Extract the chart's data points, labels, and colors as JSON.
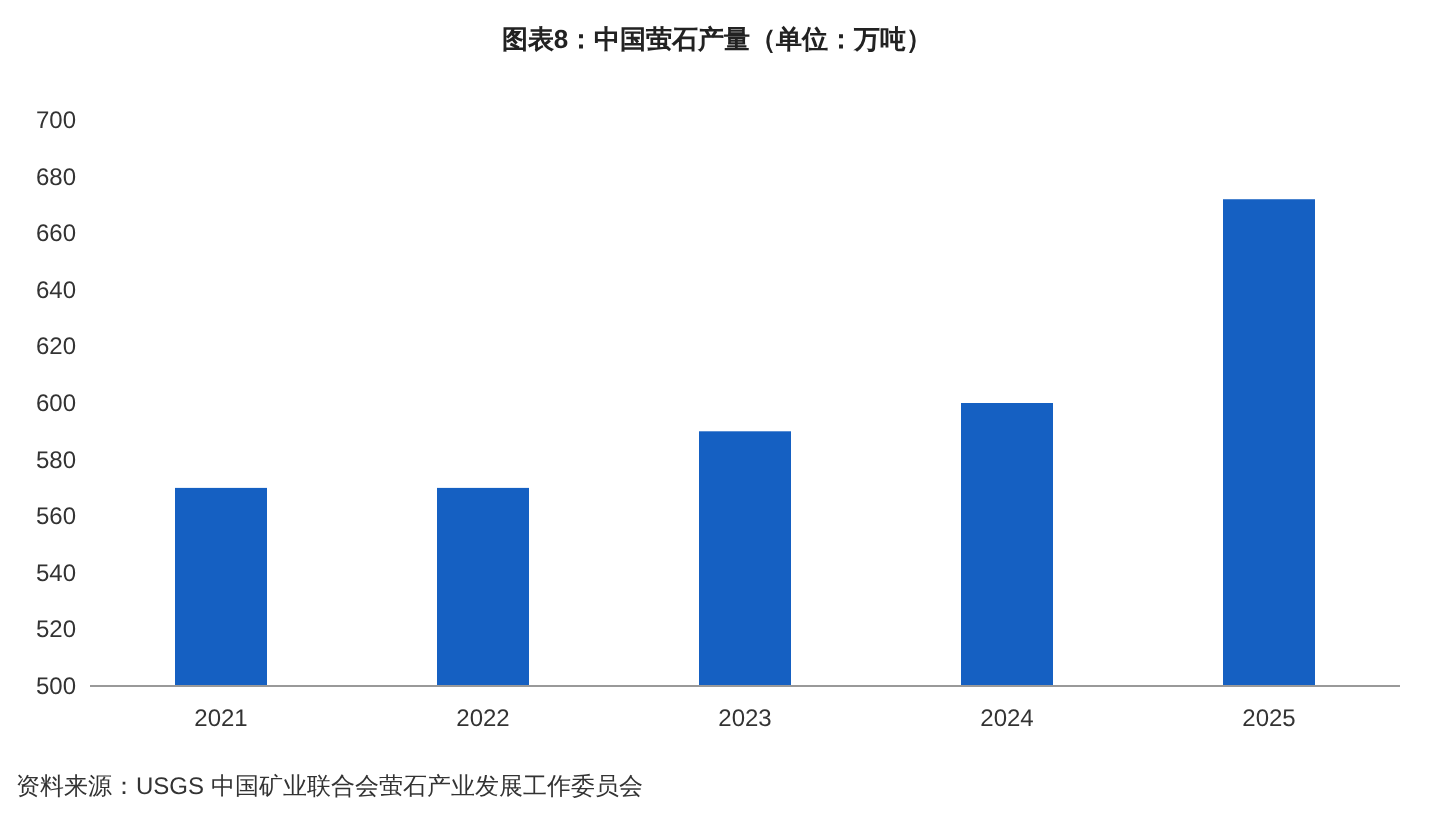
{
  "chart_data": {
    "type": "bar",
    "title": "图表8：中国萤石产量（单位：万吨）",
    "categories": [
      "2021",
      "2022",
      "2023",
      "2024",
      "2025"
    ],
    "values": [
      570,
      570,
      590,
      600,
      672
    ],
    "color": "#1560c2",
    "ylim": [
      500,
      700
    ],
    "yticks": [
      500,
      520,
      540,
      560,
      580,
      600,
      620,
      640,
      660,
      680,
      700
    ],
    "annotations": [
      "资料来源：USGS 中国矿业联合会萤石产业发展工作委员会"
    ]
  }
}
